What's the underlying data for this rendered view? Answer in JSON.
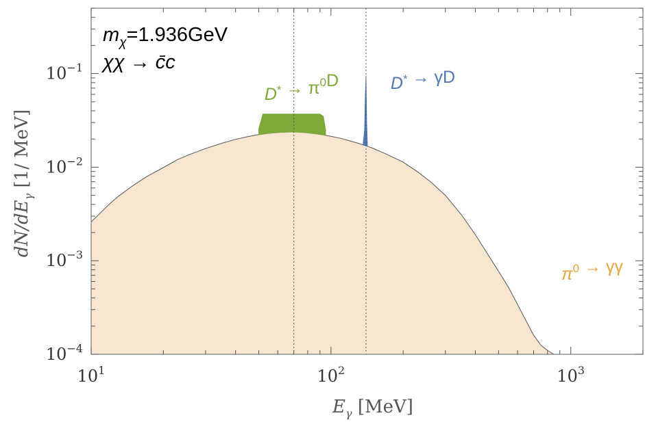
{
  "chart_data": {
    "type": "area",
    "x_scale": "log",
    "y_scale": "log",
    "xlim": [
      10,
      2000
    ],
    "ylim": [
      0.0001,
      0.5
    ],
    "xlabel": {
      "main": "E",
      "sub": "γ",
      "rest": " [MeV]"
    },
    "ylabel": {
      "main": "dN/dE",
      "sub": "γ",
      "rest": " [1/ MeV]"
    },
    "x_ticks": [
      {
        "value": 10,
        "base": "10",
        "exp": "1"
      },
      {
        "value": 100,
        "base": "10",
        "exp": "2"
      },
      {
        "value": 1000,
        "base": "10",
        "exp": "3"
      }
    ],
    "y_ticks": [
      {
        "value": 0.1,
        "base": "10",
        "exp": "−1"
      },
      {
        "value": 0.01,
        "base": "10",
        "exp": "−2"
      },
      {
        "value": 0.001,
        "base": "10",
        "exp": "−3"
      },
      {
        "value": 0.0001,
        "base": "10",
        "exp": "−4"
      }
    ],
    "reference_lines_x": [
      70,
      140
    ],
    "info": {
      "mass_symbol": "m",
      "mass_sub": "χ",
      "mass_value": "=1.936GeV",
      "process": "χχ → c̄c"
    },
    "series": [
      {
        "name": "π0 → γγ",
        "color": "#f8e6d0",
        "edge_color": "#555555",
        "x": [
          10,
          11,
          12,
          13,
          15,
          17,
          20,
          23,
          26,
          30,
          35,
          40,
          45,
          50,
          55,
          60,
          65,
          70,
          75,
          80,
          85,
          90,
          100,
          110,
          120,
          130,
          140,
          150,
          170,
          200,
          230,
          260,
          300,
          350,
          400,
          450,
          500,
          550,
          600,
          650,
          700,
          750,
          800,
          850
        ],
        "y": [
          0.0026,
          0.0033,
          0.0041,
          0.0049,
          0.0064,
          0.0079,
          0.0099,
          0.0121,
          0.0138,
          0.0158,
          0.018,
          0.0198,
          0.0212,
          0.0223,
          0.023,
          0.0235,
          0.0237,
          0.0238,
          0.0236,
          0.0233,
          0.0229,
          0.0224,
          0.0214,
          0.0203,
          0.0191,
          0.018,
          0.0169,
          0.0159,
          0.0138,
          0.0113,
          0.0089,
          0.007,
          0.005,
          0.0031,
          0.0019,
          0.00118,
          0.00077,
          0.00052,
          0.00034,
          0.00023,
          0.00016,
          0.000125,
          0.00011,
          0.0001
        ]
      },
      {
        "name": "D* → π0D",
        "color": "#7ea83a",
        "x": [
          50,
          52,
          55,
          60,
          70,
          80,
          90,
          93,
          95
        ],
        "y_top": [
          0.026,
          0.037,
          0.037,
          0.037,
          0.037,
          0.037,
          0.037,
          0.035,
          0.025
        ],
        "y_base": [
          0.0222,
          0.0225,
          0.023,
          0.0235,
          0.0238,
          0.0233,
          0.0224,
          0.0221,
          0.0219
        ]
      },
      {
        "name": "D* → γD",
        "color": "#4f78b4",
        "x": [
          136,
          138,
          139,
          140,
          141,
          142
        ],
        "y_top": [
          0.0175,
          0.025,
          0.06,
          0.095,
          0.03,
          0.0172
        ],
        "y_base": [
          0.0172,
          0.0171,
          0.017,
          0.0169,
          0.0168,
          0.0167
        ]
      }
    ],
    "annotations": [
      {
        "series": "D* → π0D",
        "prefix": "D",
        "mark": "*",
        "mid": " → π",
        "sup": "0",
        "suffix": "D",
        "color": "#7ea83a"
      },
      {
        "series": "D* → γD",
        "prefix": "D",
        "mark": "*",
        "mid": " → γD",
        "sup": "",
        "suffix": "",
        "color": "#4f78b4"
      },
      {
        "series": "π0 → γγ",
        "prefix": "π",
        "mark": "",
        "mid": "",
        "sup": "0",
        "suffix": " → γγ",
        "color": "#e8a33d"
      }
    ],
    "grid": false,
    "legend": "none"
  }
}
